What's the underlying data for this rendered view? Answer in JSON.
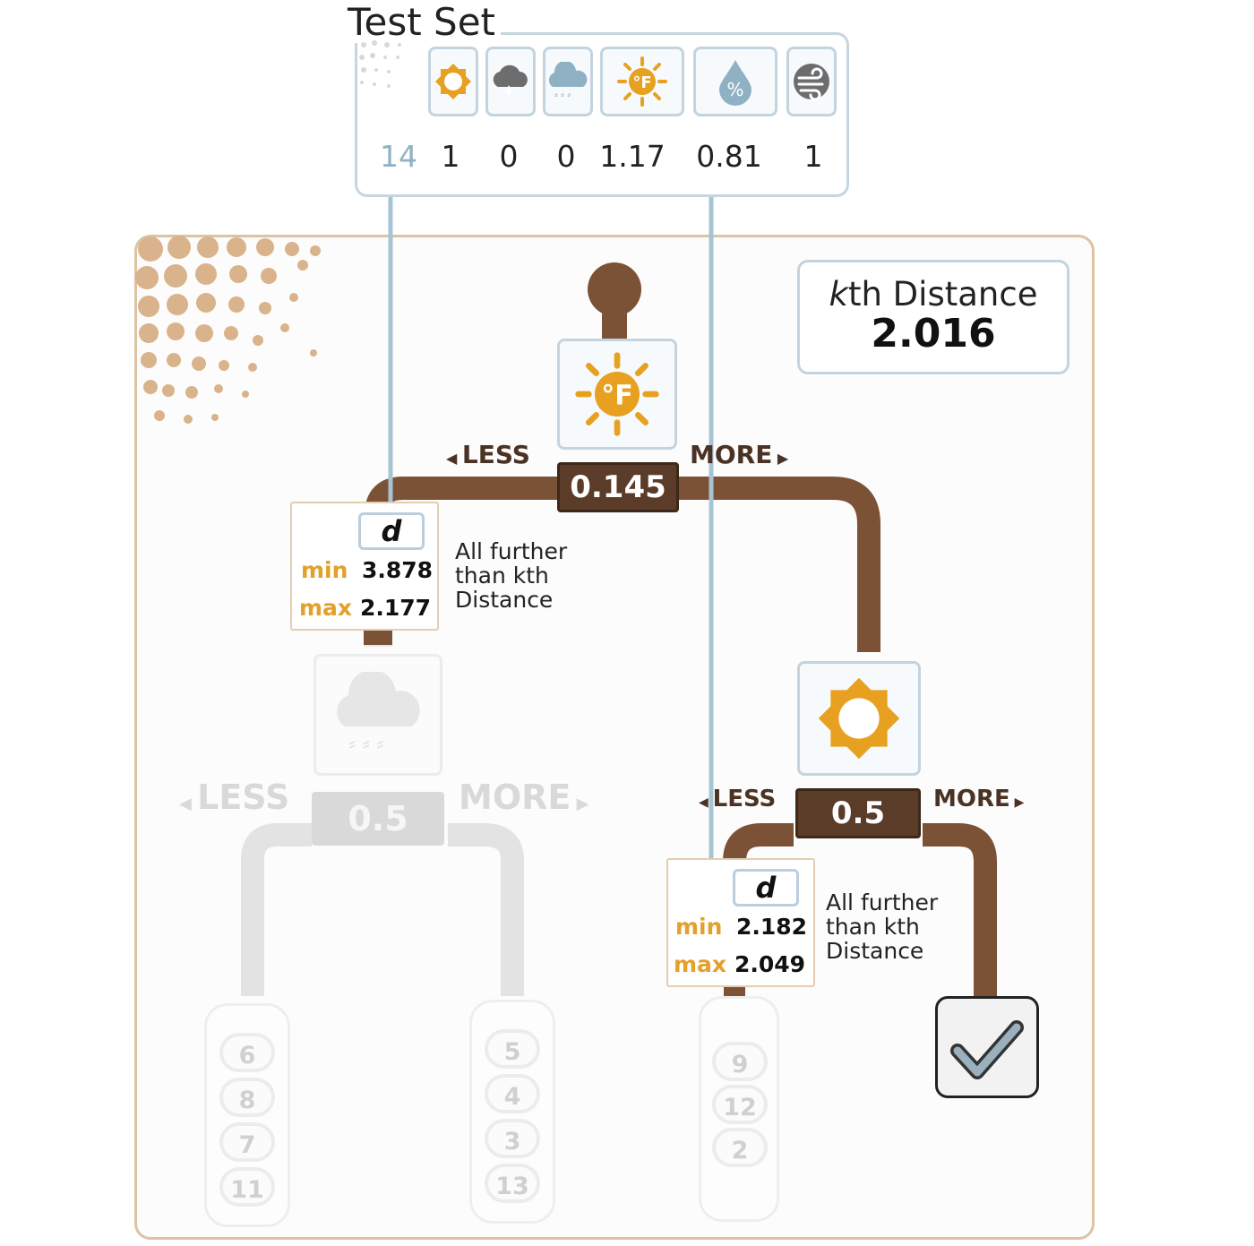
{
  "test_set": {
    "title": "Test Set",
    "features": [
      {
        "icon": "sun-icon",
        "value": "14"
      },
      {
        "icon": "cloud-rain-icon",
        "value": "1"
      },
      {
        "icon": "cloud-snow-icon",
        "value": "0"
      },
      {
        "icon": "temperature-fahrenheit-icon",
        "value": "0"
      },
      {
        "icon": "humidity-icon",
        "value": "1.17"
      },
      {
        "icon": "wind-icon",
        "value": "0.81"
      },
      {
        "icon": "extra-value",
        "value": "1"
      }
    ]
  },
  "kth_distance": {
    "label_italic": "k",
    "label_rest": "th Distance",
    "value": "2.016"
  },
  "root": {
    "feature_icon": "temperature-fahrenheit-icon",
    "threshold": "0.145",
    "less_label": "LESS",
    "more_label": "MORE",
    "pruned": {
      "d_label": "d",
      "min_label": "min",
      "min": "3.878",
      "max_label": "max",
      "max": "2.177",
      "note": "All further than kth Distance"
    }
  },
  "left_node": {
    "feature_icon": "cloud-snow-icon",
    "threshold": "0.5",
    "less_label": "LESS",
    "more_label": "MORE",
    "leaf_left": [
      "6",
      "8",
      "7",
      "11"
    ],
    "leaf_right": [
      "5",
      "4",
      "3",
      "13"
    ]
  },
  "right_node": {
    "feature_icon": "sun-icon",
    "threshold": "0.5",
    "less_label": "LESS",
    "more_label": "MORE",
    "pruned": {
      "d_label": "d",
      "min_label": "min",
      "min": "2.182",
      "max_label": "max",
      "max": "2.049",
      "note": "All further than kth Distance"
    },
    "leaf_left": [
      "9",
      "12",
      "2"
    ],
    "status_icon": "checkmark-icon"
  },
  "colors": {
    "branch": "#7b5236",
    "sign": "#5a3c28",
    "accent": "#e8a020",
    "wire": "#9bbdd0",
    "ghost": "#dcdcdc"
  }
}
